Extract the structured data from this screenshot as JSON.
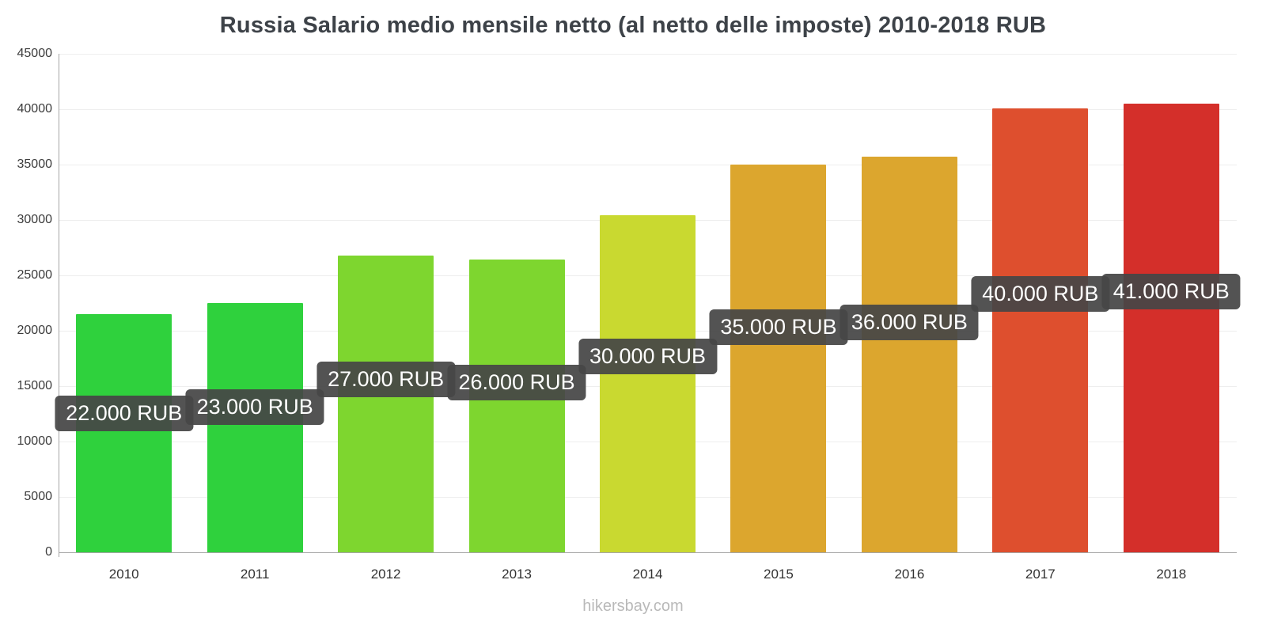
{
  "page": {
    "footer": "hikersbay.com"
  },
  "chart_data": {
    "type": "bar",
    "title": "Russia Salario medio mensile netto (al netto delle imposte) 2010-2018 RUB",
    "unit": "RUB",
    "categories": [
      "2010",
      "2011",
      "2012",
      "2013",
      "2014",
      "2015",
      "2016",
      "2017",
      "2018"
    ],
    "values": [
      21500,
      22500,
      26800,
      26400,
      30400,
      35000,
      35700,
      40100,
      40500
    ],
    "bar_labels": [
      "22.000 RUB",
      "23.000 RUB",
      "27.000 RUB",
      "26.000 RUB",
      "30.000 RUB",
      "35.000 RUB",
      "36.000 RUB",
      "40.000 RUB",
      "41.000 RUB"
    ],
    "bar_colors": [
      "#2fd13d",
      "#2fd13d",
      "#7ed62f",
      "#7ed62f",
      "#c9d930",
      "#dca62e",
      "#dca62e",
      "#de4f2e",
      "#d42f2a"
    ],
    "xlabel": "",
    "ylabel": "",
    "ylim": [
      0,
      45000
    ],
    "y_ticks": [
      0,
      5000,
      10000,
      15000,
      20000,
      25000,
      30000,
      35000,
      40000,
      45000
    ],
    "grid": "horizontal-light",
    "legend": "none",
    "tooltip_bg": "#464646",
    "tooltip_text_color": "#ffffff"
  }
}
